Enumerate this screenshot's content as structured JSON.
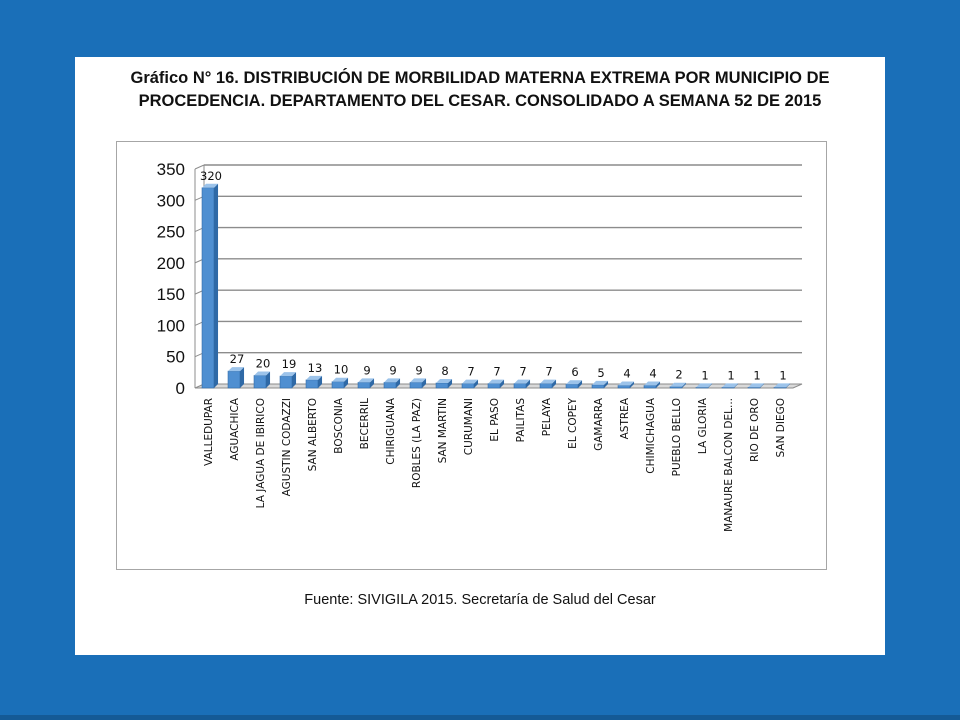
{
  "slide": {
    "title_line1": "Gráfico N° 16.  DISTRIBUCIÓN DE MORBILIDAD MATERNA EXTREMA POR MUNICIPIO DE",
    "title_line2": "PROCEDENCIA. DEPARTAMENTO DEL CESAR.  CONSOLIDADO A SEMANA 52 DE 2015",
    "source": "Fuente: SIVIGILA 2015. Secretaría de Salud del Cesar"
  },
  "colors": {
    "background": "#1a6fb8",
    "bar": "#4f8fd1",
    "bar_side": "#2f69a6",
    "bar_top": "#9cc3ea",
    "grid": "#8c8c8c"
  },
  "chart_data": {
    "type": "bar",
    "categories": [
      "VALLEDUPAR",
      "AGUACHICA",
      "LA JAGUA DE IBIRICO",
      "AGUSTIN CODAZZI",
      "SAN ALBERTO",
      "BOSCONIA",
      "BECERRIL",
      "CHIRIGUANA",
      "ROBLES (LA PAZ)",
      "SAN MARTIN",
      "CURUMANI",
      "EL PASO",
      "PAILITAS",
      "PELAYA",
      "EL COPEY",
      "GAMARRA",
      "ASTREA",
      "CHIMICHAGUA",
      "PUEBLO BELLO",
      "LA GLORIA",
      "MANAURE BALCON DEL...",
      "RIO DE ORO",
      "SAN DIEGO"
    ],
    "values": [
      320,
      27,
      20,
      19,
      13,
      10,
      9,
      9,
      9,
      8,
      7,
      7,
      7,
      7,
      6,
      5,
      4,
      4,
      2,
      1,
      1,
      1,
      1
    ],
    "data_labels": [
      "320",
      "27",
      "20",
      "19",
      "13",
      "10",
      "9",
      "9",
      "9",
      "8",
      "7",
      "7",
      "7",
      "7",
      "6",
      "5",
      "4",
      "4",
      "2",
      "1",
      "1",
      "1",
      "1"
    ],
    "yticks": [
      0,
      50,
      100,
      150,
      200,
      250,
      300,
      350
    ],
    "ytick_labels": [
      "0",
      "50",
      "100",
      "150",
      "200",
      "250",
      "300",
      "350"
    ],
    "ylim": [
      0,
      350
    ],
    "grid": true,
    "legend": "none"
  }
}
